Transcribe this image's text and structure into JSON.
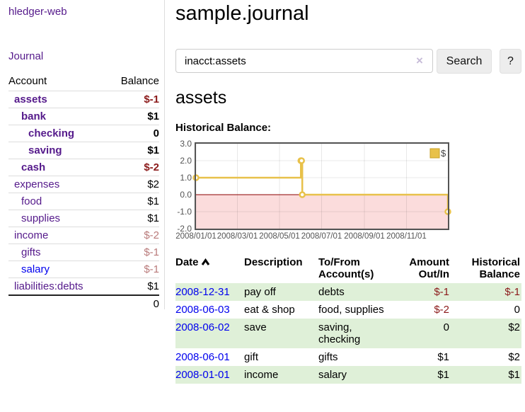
{
  "app": {
    "brand": "hledger-web",
    "nav_journal": "Journal"
  },
  "colors": {
    "link_visited_purple": "#551a8b",
    "link_blue": "#0000ee",
    "negative_red": "#8b1a1a",
    "negative_light_red": "#b97a7a",
    "row_stripe_green": "#dff0d8",
    "chart_line_gold": "#e8c14a",
    "chart_negative_fill_pink": "#fbdcdc",
    "chart_zero_line": "#8b0000",
    "chart_border_gray": "#545454"
  },
  "sidebar": {
    "accounts_header": {
      "account": "Account",
      "balance": "Balance"
    },
    "accounts": [
      {
        "name": "assets",
        "balance": "$-1",
        "level": 1,
        "bold": true,
        "name_style": "purple",
        "bal_style": "neg"
      },
      {
        "name": "bank",
        "balance": "$1",
        "level": 2,
        "bold": true,
        "name_style": "purple",
        "bal_style": "black"
      },
      {
        "name": "checking",
        "balance": "0",
        "level": 3,
        "bold": true,
        "name_style": "purple",
        "bal_style": "black"
      },
      {
        "name": "saving",
        "balance": "$1",
        "level": 3,
        "bold": true,
        "name_style": "purple",
        "bal_style": "black"
      },
      {
        "name": "cash",
        "balance": "$-2",
        "level": 2,
        "bold": true,
        "name_style": "purple",
        "bal_style": "neg"
      },
      {
        "name": "expenses",
        "balance": "$2",
        "level": 1,
        "bold": false,
        "name_style": "purple",
        "bal_style": "black"
      },
      {
        "name": "food",
        "balance": "$1",
        "level": 2,
        "bold": false,
        "name_style": "purple",
        "bal_style": "black"
      },
      {
        "name": "supplies",
        "balance": "$1",
        "level": 2,
        "bold": false,
        "name_style": "purple",
        "bal_style": "black"
      },
      {
        "name": "income",
        "balance": "$-2",
        "level": 1,
        "bold": false,
        "name_style": "purple",
        "bal_style": "neg-light"
      },
      {
        "name": "gifts",
        "balance": "$-1",
        "level": 2,
        "bold": false,
        "name_style": "purple",
        "bal_style": "neg-light"
      },
      {
        "name": "salary",
        "balance": "$-1",
        "level": 2,
        "bold": false,
        "name_style": "blue",
        "bal_style": "neg-light"
      },
      {
        "name": "liabilities:debts",
        "balance": "$1",
        "level": 1,
        "bold": false,
        "name_style": "purple",
        "bal_style": "black"
      }
    ],
    "total": "0"
  },
  "main": {
    "title": "sample.journal",
    "search": {
      "value": "inacct:assets",
      "clear_glyph": "×",
      "button_label": "Search",
      "help_label": "?"
    },
    "account_heading": "assets",
    "chart_label": "Historical Balance:"
  },
  "chart_data": {
    "type": "line",
    "title": "Historical Balance:",
    "step": true,
    "x_start": "2008-01-01",
    "x_span_days": 365,
    "ylim": [
      -2,
      3
    ],
    "yticks": [
      3.0,
      2.0,
      1.0,
      0.0,
      -1.0,
      -2.0
    ],
    "xtick_labels": [
      "2008/01/01",
      "2008/03/01",
      "2008/05/01",
      "2008/07/01",
      "2008/09/01",
      "2008/11/01"
    ],
    "legend": {
      "position": "top-right",
      "entries": [
        "$"
      ]
    },
    "grid": true,
    "series": [
      {
        "name": "$",
        "points": [
          {
            "date": "2008-01-01",
            "value": 1
          },
          {
            "date": "2008-06-01",
            "value": 2
          },
          {
            "date": "2008-06-02",
            "value": 2
          },
          {
            "date": "2008-06-03",
            "value": 0
          },
          {
            "date": "2008-12-31",
            "value": -1
          }
        ]
      }
    ]
  },
  "register": {
    "headers": {
      "date": "Date",
      "description": "Description",
      "accounts": "To/From Account(s)",
      "amount": "Amount Out/In",
      "balance": "Historical Balance"
    },
    "rows": [
      {
        "date": "2008-12-31",
        "description": "pay off",
        "accounts": "debts",
        "amount": "$-1",
        "amount_neg": true,
        "balance": "$-1",
        "balance_neg": true,
        "stripe": true
      },
      {
        "date": "2008-06-03",
        "description": "eat & shop",
        "accounts": "food, supplies",
        "amount": "$-2",
        "amount_neg": true,
        "balance": "0",
        "balance_neg": false,
        "stripe": false
      },
      {
        "date": "2008-06-02",
        "description": "save",
        "accounts": "saving, checking",
        "amount": "0",
        "amount_neg": false,
        "balance": "$2",
        "balance_neg": false,
        "stripe": true
      },
      {
        "date": "2008-06-01",
        "description": "gift",
        "accounts": "gifts",
        "amount": "$1",
        "amount_neg": false,
        "balance": "$2",
        "balance_neg": false,
        "stripe": false
      },
      {
        "date": "2008-01-01",
        "description": "income",
        "accounts": "salary",
        "amount": "$1",
        "amount_neg": false,
        "balance": "$1",
        "balance_neg": false,
        "stripe": true
      }
    ]
  }
}
